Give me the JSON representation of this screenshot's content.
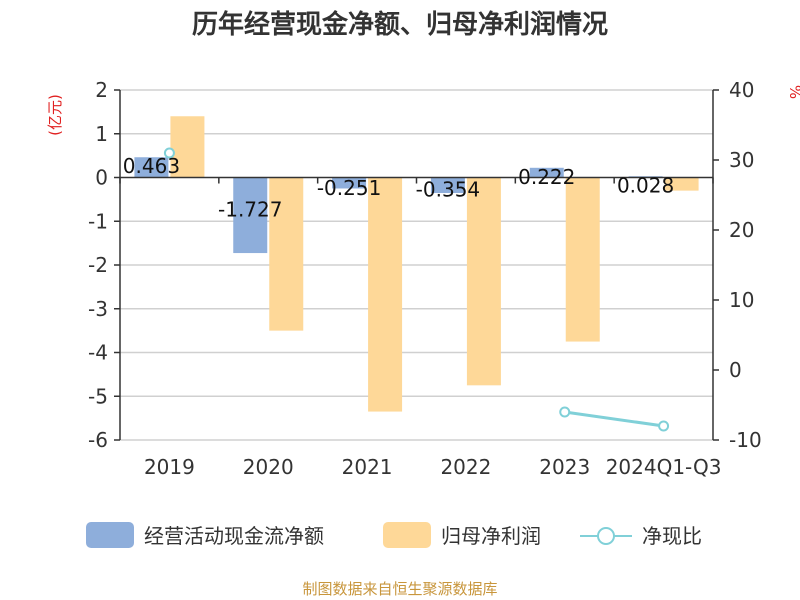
{
  "chart_data": {
    "type": "bar",
    "title": "历年经营现金净额、归母净利润情况",
    "categories": [
      "2019",
      "2020",
      "2021",
      "2022",
      "2023",
      "2024Q1-Q3"
    ],
    "series": [
      {
        "name": "经营活动现金流净额",
        "type": "bar",
        "axis": "left",
        "color": "#8eaedb",
        "values": [
          0.463,
          -1.727,
          -0.251,
          -0.354,
          0.222,
          0.028
        ]
      },
      {
        "name": "归母净利润",
        "type": "bar",
        "axis": "left",
        "color": "#fed898",
        "values": [
          1.4,
          -3.5,
          -5.35,
          -4.75,
          -3.75,
          -0.3
        ]
      },
      {
        "name": "净现比",
        "type": "line",
        "axis": "right",
        "color": "#80d0d8",
        "values": [
          31.0,
          null,
          null,
          null,
          -6.0,
          -8.0
        ]
      }
    ],
    "data_labels": [
      "0.463",
      "-1.727",
      "-0.251",
      "-0.354",
      "0.222",
      "0.028"
    ],
    "left_axis": {
      "unit": "(亿元)",
      "ylim": [
        -6,
        2
      ],
      "ticks": [
        "2",
        "1",
        "0",
        "-1",
        "-2",
        "-3",
        "-4",
        "-5",
        "-6"
      ]
    },
    "right_axis": {
      "unit": "%",
      "ylim": [
        -10,
        40
      ],
      "ticks": [
        "40",
        "30",
        "20",
        "10",
        "0",
        "-10"
      ]
    },
    "grid": true,
    "legend_position": "bottom"
  },
  "source": "制图数据来自恒生聚源数据库"
}
